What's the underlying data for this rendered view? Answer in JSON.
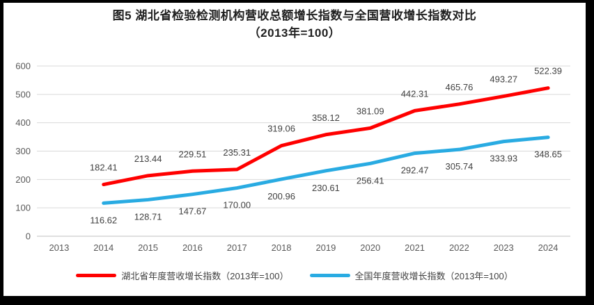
{
  "window": {
    "background_color": "#ffffff",
    "frame_border_color": "#000000"
  },
  "chart_data": {
    "type": "line",
    "title_line1": "图5 湖北省检验检测机构营收总额增长指数与全国营收增长指数对比",
    "title_line2": "（2013年=100）",
    "categories": [
      "2013",
      "2014",
      "2015",
      "2016",
      "2017",
      "2018",
      "2019",
      "2020",
      "2021",
      "2022",
      "2023",
      "2024"
    ],
    "xlabel": "",
    "ylabel": "",
    "ylim": [
      0,
      600
    ],
    "yticks": [
      0,
      100,
      200,
      300,
      400,
      500,
      600
    ],
    "grid": "horizontal",
    "gridline_color": "#d9d9d9",
    "axis_line_color": "#bfbfbf",
    "axis_label_color": "#595959",
    "data_label_color": "#404040",
    "legend_position": "bottom",
    "series": [
      {
        "name": "湖北省年度营收增长指数（2013年=100）",
        "color": "#ff0000",
        "label_position": "above",
        "values": [
          null,
          182.41,
          213.44,
          229.51,
          235.31,
          319.06,
          358.12,
          381.09,
          442.31,
          465.76,
          493.27,
          522.39
        ]
      },
      {
        "name": "全国年度营收增长指数（2013年=100）",
        "color": "#29abe2",
        "label_position": "below",
        "values": [
          null,
          116.62,
          128.71,
          147.67,
          170.0,
          200.96,
          230.61,
          256.41,
          292.47,
          305.74,
          333.93,
          348.65
        ]
      }
    ]
  }
}
